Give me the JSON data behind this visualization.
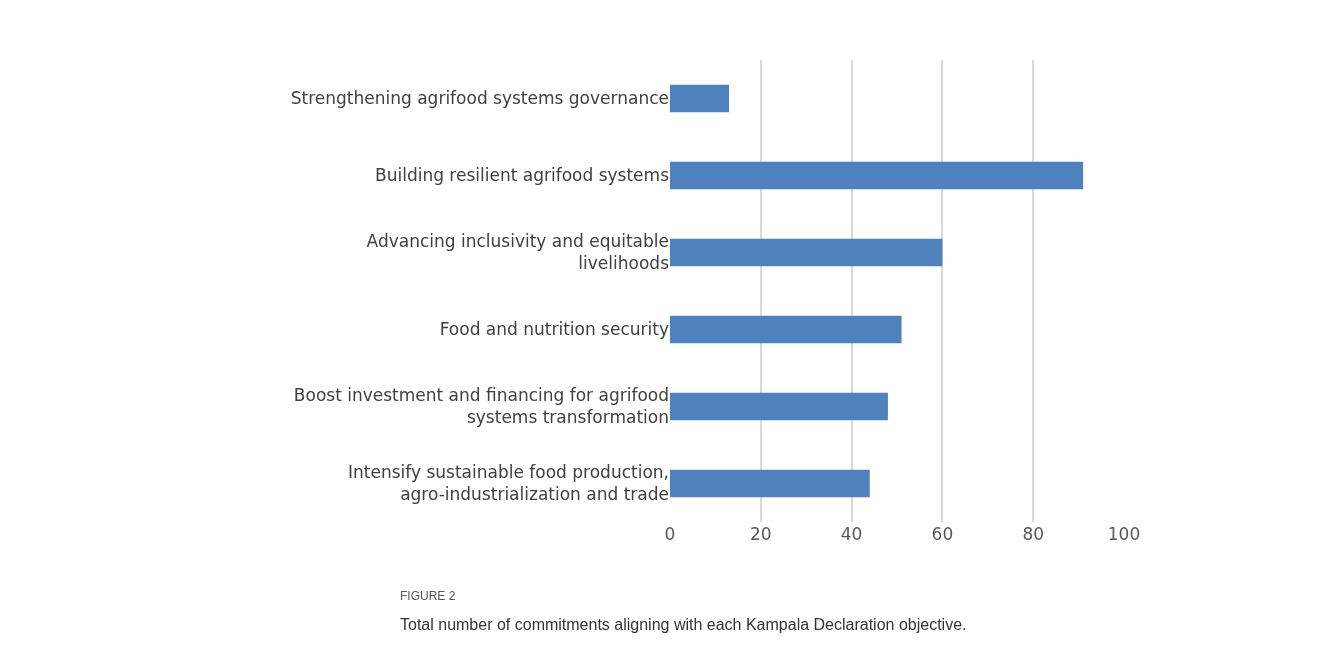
{
  "chart_data": {
    "type": "bar",
    "orientation": "horizontal",
    "categories": [
      "Strengthening agrifood systems governance",
      "Building resilient agrifood systems",
      "Advancing inclusivity and equitable livelihoods",
      "Food and nutrition security",
      "Boost investment and financing for agrifood systems transformation",
      "Intensify sustainable food production, agro-industrialization and trade"
    ],
    "values": [
      13,
      91,
      60,
      51,
      48,
      44
    ],
    "color": "#4f81bd",
    "xlim": [
      0,
      100
    ],
    "xticks": [
      0,
      20,
      40,
      60,
      80,
      100
    ],
    "grid": "x",
    "annotations": [
      "FIGURE 2",
      "Total number of commitments aligning with each Kampala Declaration objective."
    ]
  }
}
